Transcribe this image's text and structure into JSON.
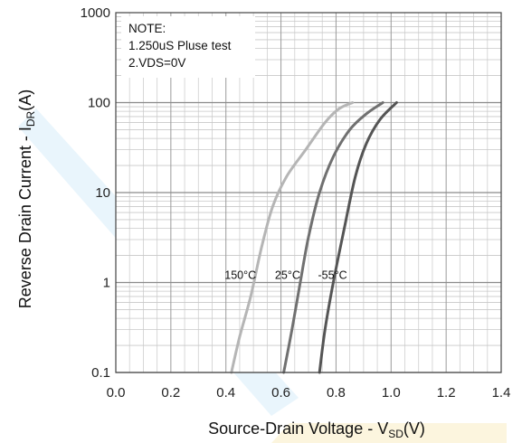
{
  "chart_data": {
    "type": "line",
    "y_scale": "log",
    "xlim": [
      0.0,
      1.4
    ],
    "ylim": [
      0.1,
      1000
    ],
    "x_ticks": [
      "0.0",
      "0.2",
      "0.4",
      "0.6",
      "0.8",
      "1.0",
      "1.2",
      "1.4"
    ],
    "y_ticks": [
      "0.1",
      "1",
      "10",
      "100",
      "1000"
    ],
    "xlabel": {
      "prefix": "Source-Drain Voltage - V",
      "sub": "SD",
      "suffix": "(V)"
    },
    "ylabel": {
      "prefix": "Reverse Drain Current - I",
      "sub": "DR",
      "suffix": "(A)"
    },
    "grid": true,
    "note_lines": [
      "NOTE:",
      "1.250uS Pluse test",
      "2.VDS=0V"
    ],
    "series": [
      {
        "name": "150°C",
        "color": "#b5b5b5",
        "x": [
          0.42,
          0.45,
          0.49,
          0.53,
          0.57,
          0.62,
          0.69,
          0.76,
          0.81,
          0.86
        ],
        "y": [
          0.1,
          0.25,
          0.7,
          2.5,
          7,
          15,
          30,
          60,
          85,
          100
        ]
      },
      {
        "name": "25°C",
        "color": "#707070",
        "x": [
          0.61,
          0.64,
          0.67,
          0.7,
          0.74,
          0.79,
          0.85,
          0.91,
          0.97
        ],
        "y": [
          0.1,
          0.3,
          1.0,
          3.2,
          10,
          25,
          50,
          75,
          100
        ]
      },
      {
        "name": "-55°C",
        "color": "#555555",
        "x": [
          0.74,
          0.76,
          0.79,
          0.83,
          0.87,
          0.91,
          0.96,
          1.02
        ],
        "y": [
          0.1,
          0.3,
          1.0,
          4,
          15,
          35,
          65,
          100
        ]
      }
    ],
    "curve_labels": [
      {
        "series": "150°C",
        "text": "150°C",
        "at_x": 0.51,
        "at_y": 1.05
      },
      {
        "series": "25°C",
        "text": "25°C",
        "at_x": 0.67,
        "at_y": 1.05
      },
      {
        "series": "-55°C",
        "text": "-55°C",
        "at_x": 0.84,
        "at_y": 1.05
      }
    ]
  }
}
